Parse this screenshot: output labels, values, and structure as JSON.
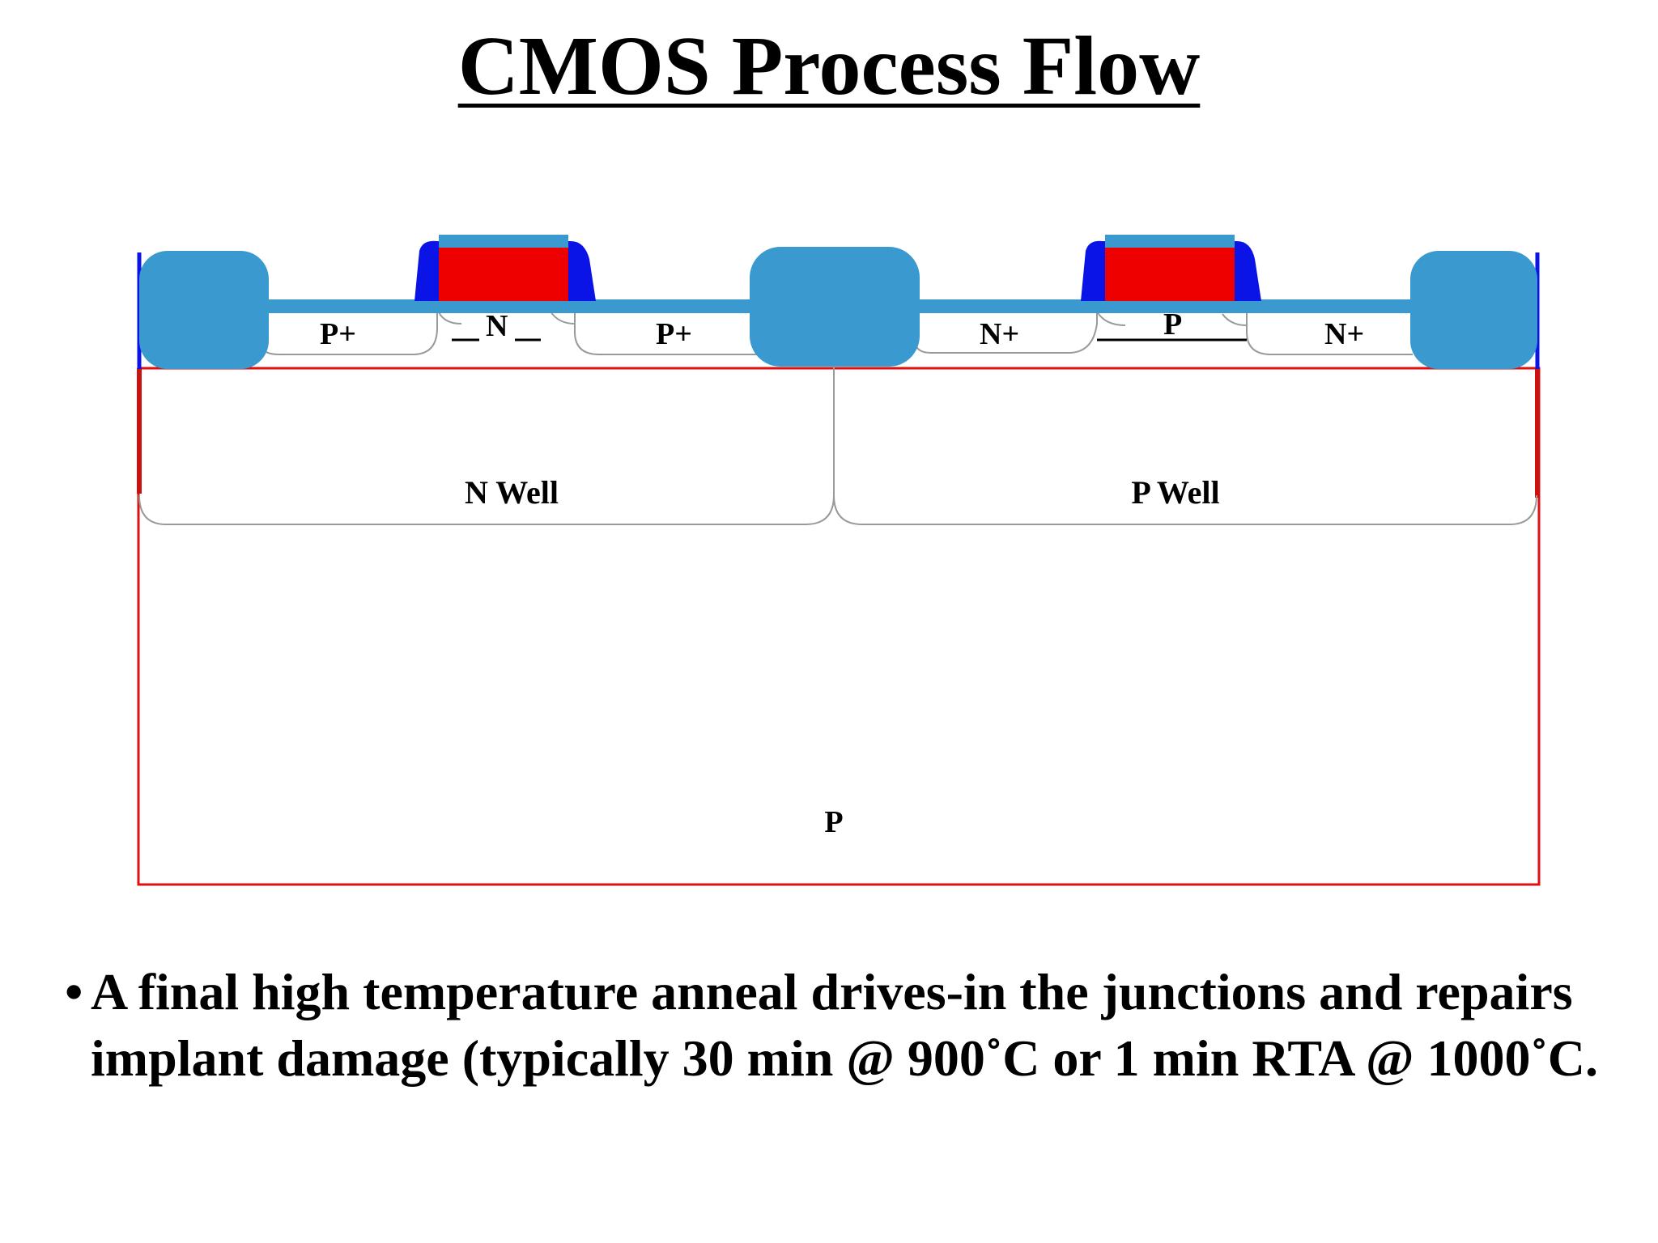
{
  "slide": {
    "title": "CMOS Process Flow",
    "bullet_marker": "•",
    "bullet_text": " A final high temperature anneal drives-in the junctions and repairs implant damage (typically 30 min @ 900˚C or  1 min RTA @ 1000˚C."
  },
  "diagram": {
    "labels": {
      "pplus_left": "P+",
      "n_channel": "N",
      "pplus_right": "P+",
      "nplus_left": "N+",
      "p_channel": "P",
      "nplus_right": "N+",
      "n_well": "N Well",
      "p_well": "P Well",
      "substrate": "P"
    },
    "colors": {
      "oxide": "#3a9ad0",
      "gate_poly": "#ee0000",
      "spacer": "#0a14e6",
      "substrate_outline": "#dd1111",
      "well_outline": "#999999"
    }
  }
}
